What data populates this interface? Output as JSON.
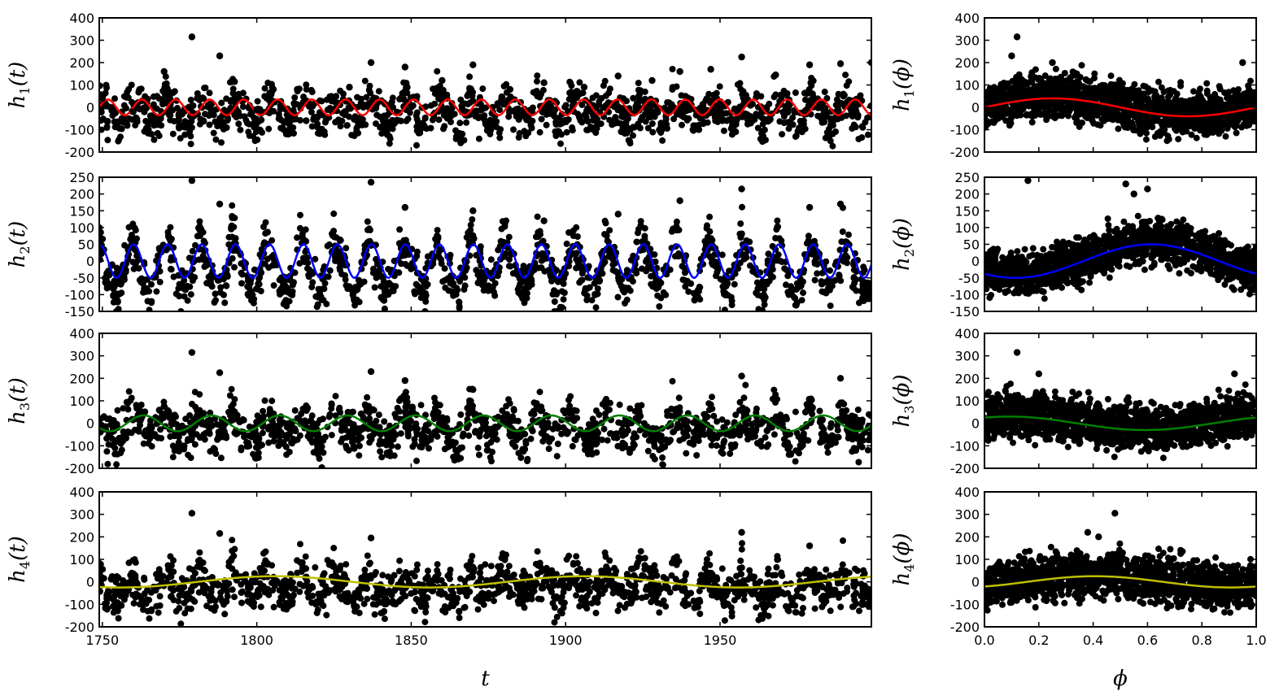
{
  "chart_data": [
    {
      "id": "h1_t",
      "type": "scatter",
      "ylabel": {
        "base": "h",
        "sub": "1",
        "arg": "(t)"
      },
      "xlim": [
        1749,
        1999
      ],
      "ylim": [
        -200,
        400
      ],
      "yticks": [
        -200,
        -100,
        0,
        100,
        200,
        300,
        400
      ],
      "xticks": [
        1750,
        1800,
        1850,
        1900,
        1950
      ],
      "show_xtick_labels": false,
      "fit_curve": {
        "color": "#ff0000",
        "amplitude": 35,
        "period": 11,
        "phase": 0.0
      },
      "data_points": [
        [
          1750,
          40
        ],
        [
          1760,
          -20
        ],
        [
          1770,
          160
        ],
        [
          1779,
          315
        ],
        [
          1788,
          230
        ],
        [
          1800,
          -10
        ],
        [
          1816,
          -60
        ],
        [
          1830,
          90
        ],
        [
          1837,
          200
        ],
        [
          1848,
          180
        ],
        [
          1860,
          120
        ],
        [
          1870,
          190
        ],
        [
          1882,
          80
        ],
        [
          1893,
          110
        ],
        [
          1906,
          90
        ],
        [
          1917,
          140
        ],
        [
          1928,
          120
        ],
        [
          1937,
          160
        ],
        [
          1947,
          170
        ],
        [
          1957,
          225
        ],
        [
          1968,
          145
        ],
        [
          1979,
          190
        ],
        [
          1989,
          195
        ],
        [
          1999,
          200
        ]
      ]
    },
    {
      "id": "h1_phi",
      "type": "scatter",
      "ylabel": {
        "base": "h",
        "sub": "1",
        "arg": "(ϕ)"
      },
      "xlim": [
        0.0,
        1.0
      ],
      "ylim": [
        -200,
        400
      ],
      "yticks": [
        -200,
        -100,
        0,
        100,
        200,
        300,
        400
      ],
      "xticks": [
        0.0,
        0.2,
        0.4,
        0.6,
        0.8,
        1.0
      ],
      "show_xtick_labels": false,
      "fit_curve": {
        "color": "#ff0000",
        "amplitude": 40,
        "period": 1,
        "phase": 0.0
      },
      "data_points": [
        [
          0.12,
          315
        ],
        [
          0.1,
          230
        ],
        [
          0.25,
          200
        ],
        [
          0.95,
          200
        ]
      ]
    },
    {
      "id": "h2_t",
      "type": "scatter",
      "ylabel": {
        "base": "h",
        "sub": "2",
        "arg": "(t)"
      },
      "xlim": [
        1749,
        1999
      ],
      "ylim": [
        -150,
        250
      ],
      "yticks": [
        -150,
        -100,
        -50,
        0,
        50,
        100,
        150,
        200,
        250
      ],
      "xticks": [
        1750,
        1800,
        1850,
        1900,
        1950
      ],
      "show_xtick_labels": false,
      "fit_curve": {
        "color": "#0000ff",
        "amplitude": 50,
        "period": 11,
        "phase": 1.5
      },
      "data_points": [
        [
          1779,
          240
        ],
        [
          1788,
          170
        ],
        [
          1837,
          235
        ],
        [
          1848,
          160
        ],
        [
          1870,
          150
        ],
        [
          1893,
          120
        ],
        [
          1917,
          140
        ],
        [
          1937,
          180
        ],
        [
          1957,
          215
        ],
        [
          1979,
          160
        ],
        [
          1989,
          170
        ]
      ]
    },
    {
      "id": "h2_phi",
      "type": "scatter",
      "ylabel": {
        "base": "h",
        "sub": "2",
        "arg": "(ϕ)"
      },
      "xlim": [
        0.0,
        1.0
      ],
      "ylim": [
        -150,
        250
      ],
      "yticks": [
        -150,
        -100,
        -50,
        0,
        50,
        100,
        150,
        200,
        250
      ],
      "xticks": [
        0.0,
        0.2,
        0.4,
        0.6,
        0.8,
        1.0
      ],
      "show_xtick_labels": false,
      "fit_curve": {
        "color": "#0000ff",
        "amplitude": 50,
        "period": 1,
        "phase": 4.0
      },
      "data_points": [
        [
          0.16,
          240
        ],
        [
          0.52,
          230
        ],
        [
          0.6,
          215
        ],
        [
          0.55,
          200
        ]
      ]
    },
    {
      "id": "h3_t",
      "type": "scatter",
      "ylabel": {
        "base": "h",
        "sub": "3",
        "arg": "(t)"
      },
      "xlim": [
        1749,
        1999
      ],
      "ylim": [
        -200,
        400
      ],
      "yticks": [
        -200,
        -100,
        0,
        100,
        200,
        300,
        400
      ],
      "xticks": [
        1750,
        1800,
        1850,
        1900,
        1950
      ],
      "show_xtick_labels": false,
      "fit_curve": {
        "color": "#008000",
        "amplitude": 35,
        "period": 22,
        "phase": 0.6
      },
      "data_points": [
        [
          1779,
          315
        ],
        [
          1788,
          225
        ],
        [
          1837,
          230
        ],
        [
          1848,
          190
        ],
        [
          1870,
          150
        ],
        [
          1957,
          210
        ],
        [
          1989,
          200
        ]
      ]
    },
    {
      "id": "h3_phi",
      "type": "scatter",
      "ylabel": {
        "base": "h",
        "sub": "3",
        "arg": "(ϕ)"
      },
      "xlim": [
        0.0,
        1.0
      ],
      "ylim": [
        -200,
        400
      ],
      "yticks": [
        -200,
        -100,
        0,
        100,
        200,
        300,
        400
      ],
      "xticks": [
        0.0,
        0.2,
        0.4,
        0.6,
        0.8,
        1.0
      ],
      "show_xtick_labels": false,
      "fit_curve": {
        "color": "#008000",
        "amplitude": 30,
        "period": 1,
        "phase": 1.0
      },
      "data_points": [
        [
          0.12,
          315
        ],
        [
          0.2,
          220
        ],
        [
          0.92,
          220
        ]
      ]
    },
    {
      "id": "h4_t",
      "type": "scatter",
      "ylabel": {
        "base": "h",
        "sub": "4",
        "arg": "(t)"
      },
      "xlim": [
        1749,
        1999
      ],
      "ylim": [
        -200,
        400
      ],
      "yticks": [
        -200,
        -100,
        0,
        100,
        200,
        300,
        400
      ],
      "xticks": [
        1750,
        1800,
        1850,
        1900,
        1950
      ],
      "show_xtick_labels": true,
      "xlabel": "t",
      "fit_curve": {
        "color": "#bfbf00",
        "amplitude": 25,
        "period": 100,
        "phase": 1.2
      },
      "data_points": [
        [
          1779,
          305
        ],
        [
          1788,
          215
        ],
        [
          1837,
          195
        ],
        [
          1957,
          220
        ],
        [
          1979,
          160
        ]
      ]
    },
    {
      "id": "h4_phi",
      "type": "scatter",
      "ylabel": {
        "base": "h",
        "sub": "4",
        "arg": "(ϕ)"
      },
      "xlim": [
        0.0,
        1.0
      ],
      "ylim": [
        -200,
        400
      ],
      "yticks": [
        -200,
        -100,
        0,
        100,
        200,
        300,
        400
      ],
      "xticks": [
        0.0,
        0.2,
        0.4,
        0.6,
        0.8,
        1.0
      ],
      "show_xtick_labels": true,
      "xlabel": "ϕ",
      "fit_curve": {
        "color": "#bfbf00",
        "amplitude": 25,
        "period": 1,
        "phase": 5.3
      },
      "data_points": [
        [
          0.48,
          305
        ],
        [
          0.38,
          220
        ],
        [
          0.42,
          200
        ]
      ]
    }
  ]
}
